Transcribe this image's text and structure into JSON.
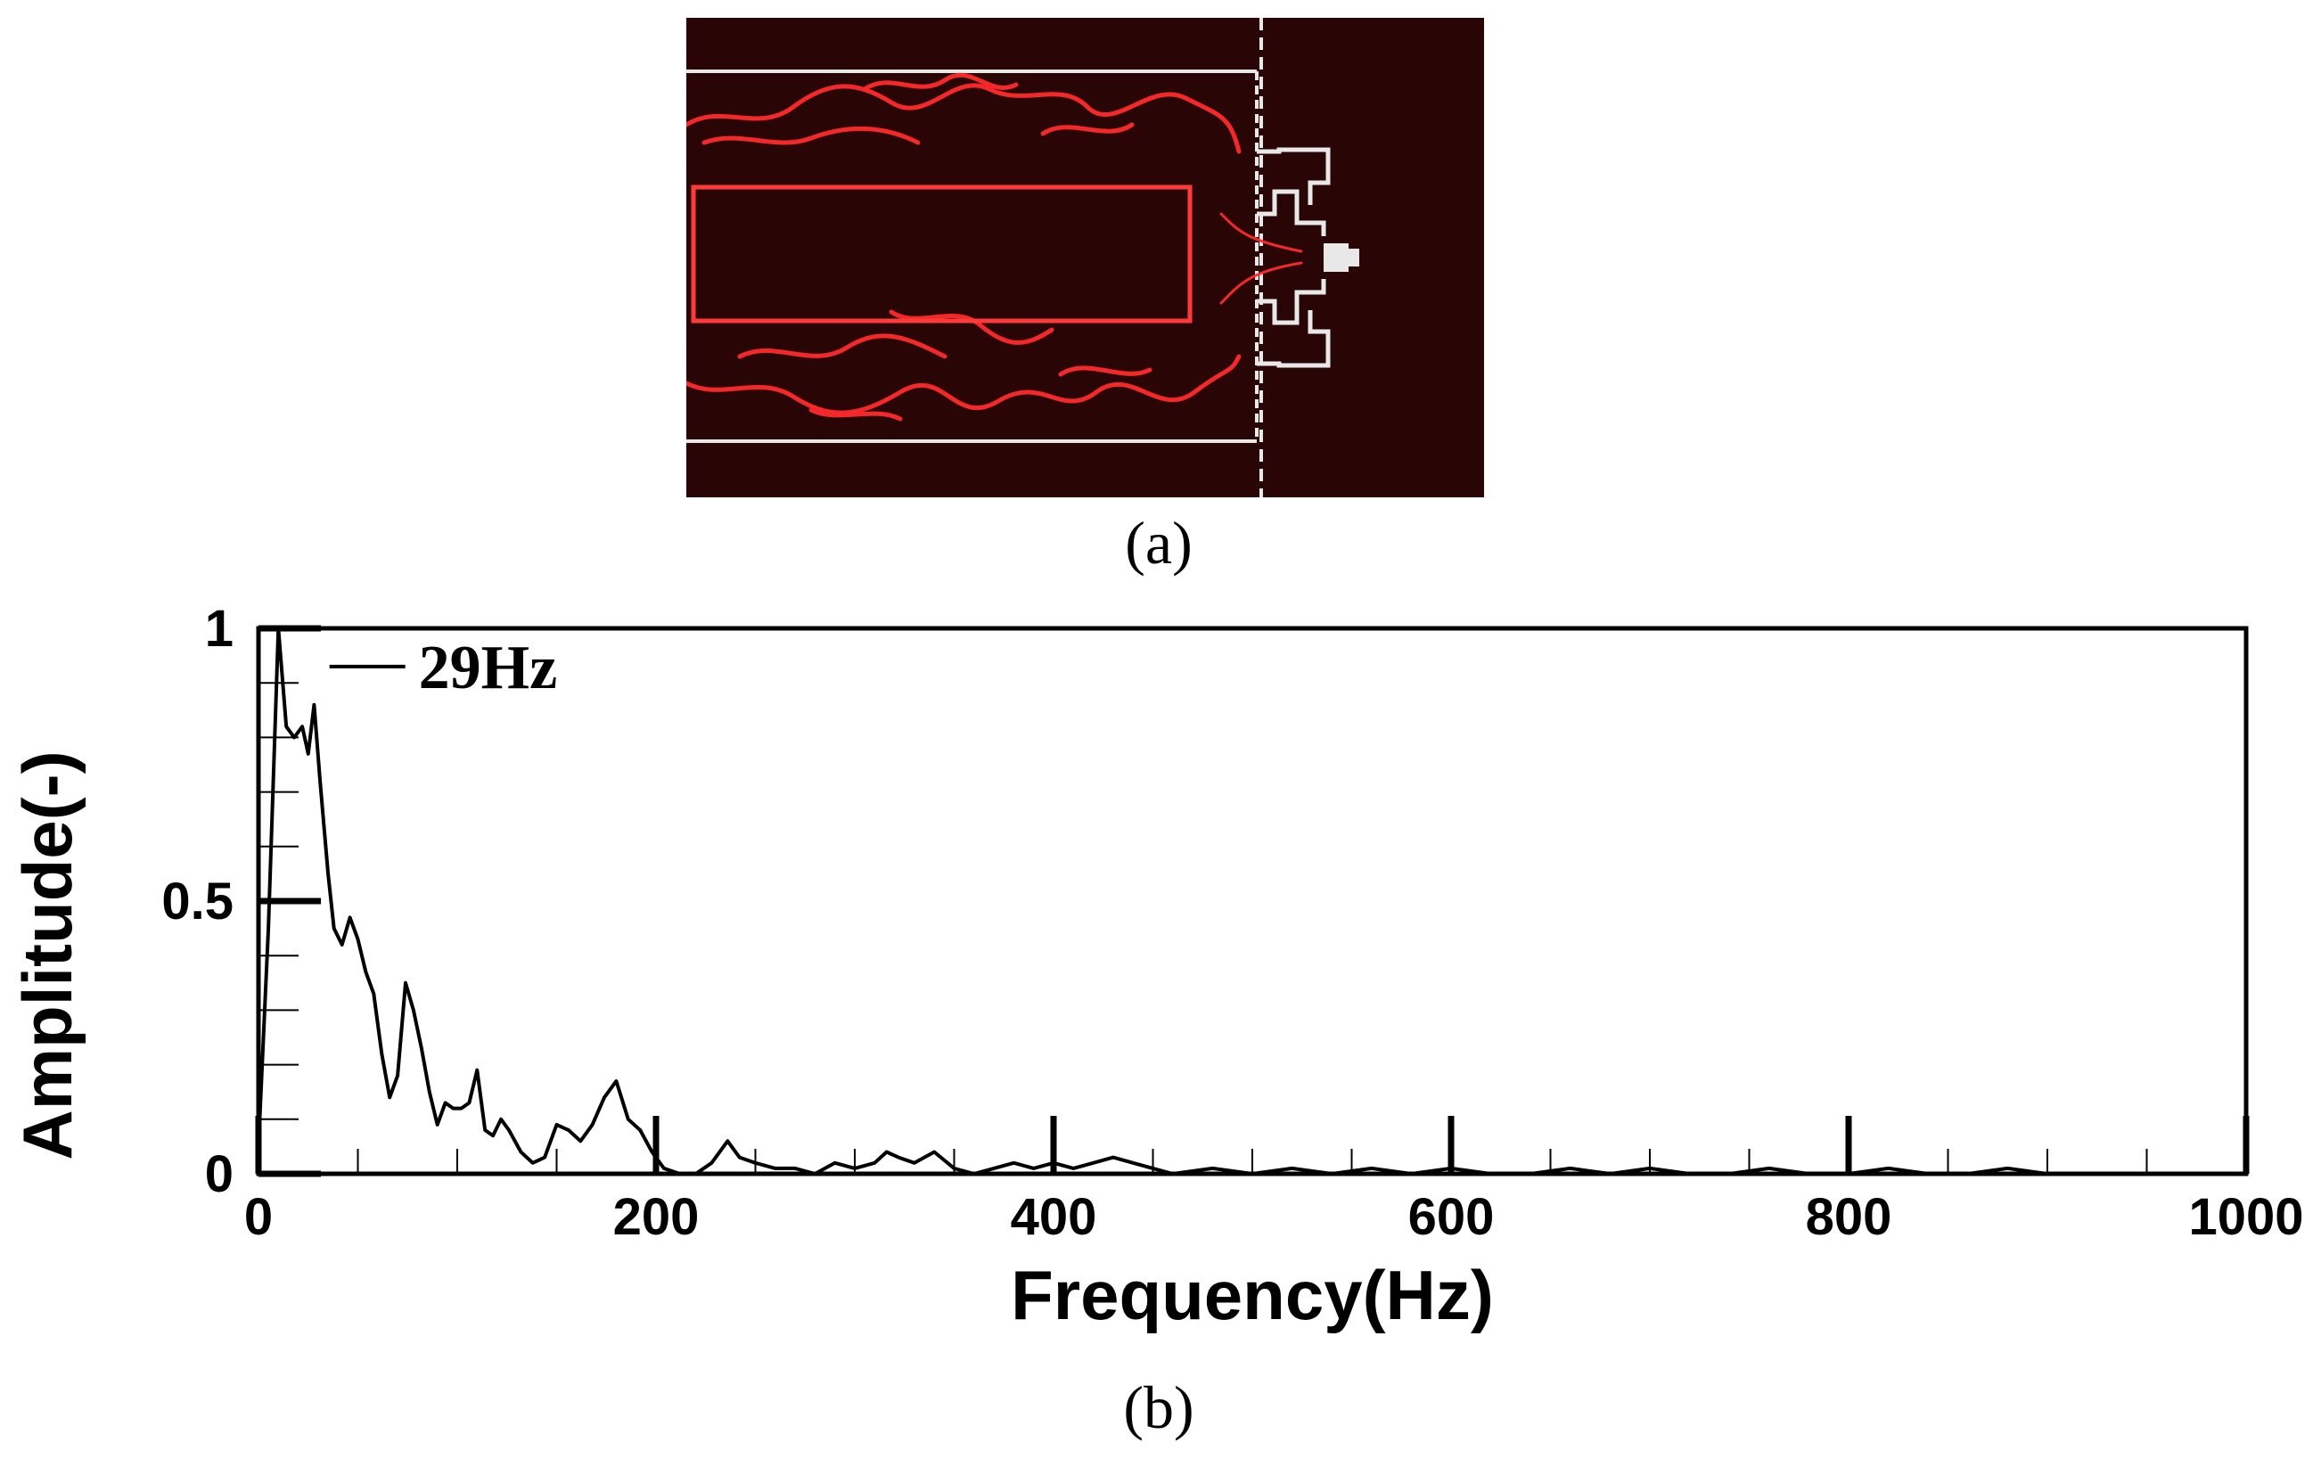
{
  "panel_a": {
    "label": "(a)",
    "colors": {
      "background": "#2a0505",
      "flame": "#ff2a2a",
      "hardware": "#e8e8e8",
      "roi_box": "#ff3a3a"
    }
  },
  "panel_b": {
    "label": "(b)",
    "annotation": "29Hz"
  },
  "chart_data": {
    "type": "line",
    "xlabel": "Frequency(Hz)",
    "ylabel": "Amplitude(-)",
    "xlim": [
      0,
      1000
    ],
    "ylim": [
      0,
      1
    ],
    "x_ticks": [
      0,
      200,
      400,
      600,
      800,
      1000
    ],
    "x_tick_labels": [
      "0",
      "200",
      "400",
      "600",
      "800",
      "1000"
    ],
    "y_ticks": [
      0,
      0.5,
      1
    ],
    "y_tick_labels": [
      "0",
      "0.5",
      "1"
    ],
    "grid": false,
    "legend": "none",
    "series": [
      {
        "color": "#000000",
        "x": [
          0,
          5,
          10,
          14,
          18,
          22,
          25,
          28,
          31,
          35,
          38,
          42,
          46,
          50,
          54,
          58,
          62,
          66,
          70,
          74,
          78,
          82,
          86,
          90,
          94,
          98,
          102,
          106,
          110,
          114,
          118,
          122,
          126,
          132,
          138,
          144,
          150,
          156,
          162,
          168,
          174,
          180,
          186,
          192,
          198,
          204,
          212,
          220,
          228,
          236,
          242,
          250,
          260,
          270,
          280,
          290,
          300,
          310,
          316,
          322,
          330,
          340,
          350,
          360,
          370,
          380,
          390,
          400,
          410,
          420,
          430,
          440,
          450,
          460,
          480,
          500,
          520,
          540,
          560,
          580,
          600,
          620,
          640,
          660,
          680,
          700,
          720,
          740,
          760,
          780,
          800,
          820,
          840,
          860,
          880,
          900,
          920,
          940,
          960,
          980,
          1000
        ],
        "y": [
          0.05,
          0.45,
          1.0,
          0.82,
          0.8,
          0.82,
          0.77,
          0.86,
          0.72,
          0.55,
          0.45,
          0.42,
          0.47,
          0.43,
          0.37,
          0.33,
          0.22,
          0.14,
          0.18,
          0.35,
          0.3,
          0.23,
          0.15,
          0.09,
          0.13,
          0.12,
          0.12,
          0.13,
          0.19,
          0.08,
          0.07,
          0.1,
          0.08,
          0.04,
          0.02,
          0.03,
          0.09,
          0.08,
          0.06,
          0.09,
          0.14,
          0.17,
          0.1,
          0.08,
          0.04,
          0.01,
          0.0,
          0.0,
          0.02,
          0.06,
          0.03,
          0.02,
          0.01,
          0.01,
          0.0,
          0.02,
          0.01,
          0.02,
          0.04,
          0.03,
          0.02,
          0.04,
          0.01,
          0.0,
          0.01,
          0.02,
          0.01,
          0.02,
          0.01,
          0.02,
          0.03,
          0.02,
          0.01,
          0.0,
          0.01,
          0.0,
          0.01,
          0.0,
          0.01,
          0.0,
          0.01,
          0.0,
          0.0,
          0.01,
          0.0,
          0.01,
          0.0,
          0.0,
          0.01,
          0.0,
          0.0,
          0.01,
          0.0,
          0.0,
          0.01,
          0.0,
          0.0,
          0.0,
          0.0,
          0.0,
          0.0
        ]
      }
    ]
  }
}
